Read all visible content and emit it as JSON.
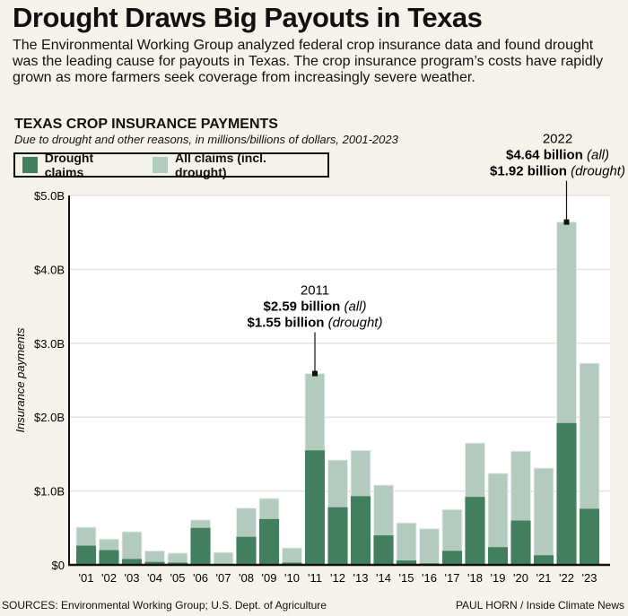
{
  "headline": "Drought Draws Big Payouts in Texas",
  "intro": "The Environmental Working Group analyzed federal crop insurance data and found drought was the leading cause for payouts in Texas. The crop insurance program’s costs have rapidly grown as more farmers seek coverage from increasingly severe weather.",
  "sources": "SOURCES: Environmental Working Group; U.S. Dept. of Agriculture",
  "credit": "PAUL HORN / Inside Climate News",
  "colors": {
    "drought": "#417f5e",
    "all": "#b3cbbe",
    "background": "#f4f3eb"
  },
  "chart_data": {
    "type": "bar",
    "stacking": "overlay",
    "title": "TEXAS CROP INSURANCE PAYMENTS",
    "subtitle": "Due to drought and other reasons, in millions/billions of dollars, 2001-2023",
    "ylabel": "Insurance payments",
    "xlabel": "",
    "ylim": [
      0,
      5.0
    ],
    "yticks": [
      "$0",
      "$1.0B",
      "$2.0B",
      "$3.0B",
      "$4.0B",
      "$5.0B"
    ],
    "grid": true,
    "legend_placement": "top-left",
    "categories": [
      "'01",
      "'02",
      "'03",
      "'04",
      "'05",
      "'06",
      "'07",
      "'08",
      "'09",
      "'10",
      "'11",
      "'12",
      "'13",
      "'14",
      "'15",
      "'16",
      "'17",
      "'18",
      "'19",
      "'20",
      "'21",
      "'22",
      "'23"
    ],
    "series": [
      {
        "name": "All claims (incl. drought)",
        "values": [
          0.51,
          0.35,
          0.45,
          0.19,
          0.16,
          0.61,
          0.17,
          0.77,
          0.9,
          0.23,
          2.59,
          1.42,
          1.55,
          1.08,
          0.57,
          0.49,
          0.75,
          1.65,
          1.24,
          1.54,
          1.31,
          4.64,
          2.73
        ]
      },
      {
        "name": "Drought claims",
        "values": [
          0.26,
          0.2,
          0.08,
          0.04,
          0.03,
          0.5,
          0.01,
          0.38,
          0.62,
          0.03,
          1.55,
          0.78,
          0.93,
          0.4,
          0.06,
          0.02,
          0.19,
          0.92,
          0.24,
          0.6,
          0.13,
          1.92,
          0.76
        ]
      }
    ],
    "annotations": [
      {
        "category": "'11",
        "year": "2011",
        "all": "$2.59 billion",
        "all_note": "(all)",
        "drought": "$1.55 billion",
        "drought_note": "(drought)"
      },
      {
        "category": "'22",
        "year": "2022",
        "all": "$4.64 billion",
        "all_note": "(all)",
        "drought": "$1.92 billion",
        "drought_note": "(drought)"
      }
    ]
  }
}
